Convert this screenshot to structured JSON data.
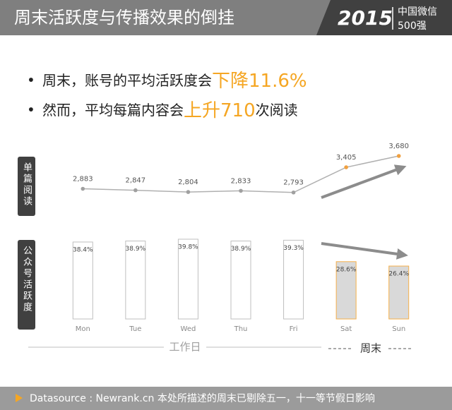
{
  "header": {
    "title": "周末活跃度与传播效果的倒挂",
    "year": "2015",
    "brand_line1": "中国微信",
    "brand_line2": "500强"
  },
  "bullets": [
    {
      "text": "周末，账号的平均活跃度会",
      "highlight": "下降11.6%"
    },
    {
      "text": "然而，平均每篇内容会",
      "highlight": "上升710",
      "suffix": "次阅读"
    }
  ],
  "chart_data": [
    {
      "type": "line",
      "ylabel": "单篇阅读",
      "categories": [
        "Mon",
        "Tue",
        "Wed",
        "Thu",
        "Fri",
        "Sat",
        "Sun"
      ],
      "values": [
        2883,
        2847,
        2804,
        2833,
        2793,
        3405,
        3680
      ],
      "value_labels": [
        "2,883",
        "2,847",
        "2,804",
        "2,833",
        "2,793",
        "3,405",
        "3,680"
      ],
      "color": "#b0b0b0",
      "point_colors": [
        "#a0a0a0",
        "#a0a0a0",
        "#a0a0a0",
        "#a0a0a0",
        "#a0a0a0",
        "#f0a040",
        "#f0a040"
      ],
      "ylim": [
        2600,
        3800
      ]
    },
    {
      "type": "bar",
      "ylabel": "公众号活跃度",
      "categories": [
        "Mon",
        "Tue",
        "Wed",
        "Thu",
        "Fri",
        "Sat",
        "Sun"
      ],
      "values": [
        38.4,
        38.9,
        39.8,
        38.9,
        39.3,
        28.6,
        26.4
      ],
      "value_labels": [
        "38.4%",
        "38.9%",
        "39.8%",
        "38.9%",
        "39.3%",
        "28.6%",
        "26.4%"
      ],
      "colors": [
        "#ffffff",
        "#ffffff",
        "#ffffff",
        "#ffffff",
        "#ffffff",
        "#d9d9d9",
        "#d9d9d9"
      ],
      "edge_colors": [
        "#bfbfbf",
        "#bfbfbf",
        "#bfbfbf",
        "#bfbfbf",
        "#bfbfbf",
        "#f5b04a",
        "#f5b04a"
      ],
      "ylim": [
        0,
        40
      ]
    }
  ],
  "groups": {
    "weekday": "工作日",
    "weekend": "周末"
  },
  "footer": "Datasource : Newrank.cn  本处所描述的周末已剔除五一，十一等节假日影响"
}
